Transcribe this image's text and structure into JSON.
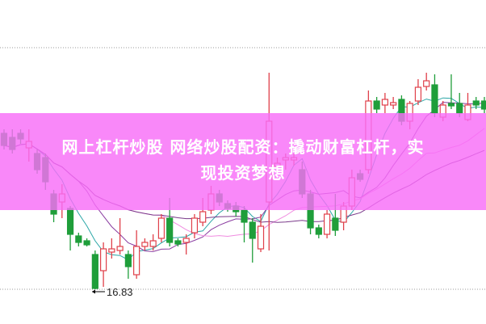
{
  "chart_data": {
    "type": "candlestick",
    "title": "",
    "colors": {
      "up": "#e0404a",
      "down": "#1f9e3a",
      "grid": "#999999",
      "ma": [
        "#2aa6a6",
        "#8a3ca0",
        "#f08ce0",
        "#7a3a8a"
      ]
    },
    "grid": "dotted horizontal top and bottom",
    "low_annotation": "16.83",
    "ohlc": [
      [
        18.76,
        18.81,
        18.56,
        18.61
      ],
      [
        18.71,
        18.81,
        18.51,
        18.56
      ],
      [
        18.76,
        18.81,
        18.63,
        18.69
      ],
      [
        18.58,
        18.81,
        18.41,
        18.66
      ],
      [
        18.51,
        18.56,
        18.26,
        18.31
      ],
      [
        18.46,
        18.51,
        18.06,
        18.16
      ],
      [
        18.01,
        18.06,
        17.66,
        17.76
      ],
      [
        17.91,
        18.13,
        17.71,
        18.01
      ],
      [
        17.83,
        17.86,
        17.31,
        17.51
      ],
      [
        17.49,
        17.53,
        17.36,
        17.41
      ],
      [
        17.43,
        17.46,
        17.36,
        17.38
      ],
      [
        17.26,
        17.31,
        16.83,
        16.84
      ],
      [
        17.06,
        17.41,
        16.86,
        17.33
      ],
      [
        17.29,
        17.46,
        17.21,
        17.33
      ],
      [
        17.31,
        17.71,
        17.26,
        17.36
      ],
      [
        17.26,
        17.31,
        16.96,
        17.11
      ],
      [
        17.01,
        17.56,
        16.96,
        17.36
      ],
      [
        17.36,
        17.46,
        17.31,
        17.41
      ],
      [
        17.36,
        17.51,
        17.31,
        17.43
      ],
      [
        17.46,
        17.76,
        17.41,
        17.71
      ],
      [
        17.71,
        17.96,
        17.36,
        17.41
      ],
      [
        17.43,
        17.46,
        17.36,
        17.39
      ],
      [
        17.41,
        17.51,
        17.26,
        17.46
      ],
      [
        17.53,
        17.76,
        17.46,
        17.71
      ],
      [
        17.66,
        17.96,
        17.61,
        17.79
      ],
      [
        17.81,
        18.11,
        17.76,
        18.01
      ],
      [
        18.01,
        18.06,
        17.86,
        17.91
      ],
      [
        17.89,
        17.93,
        17.79,
        17.83
      ],
      [
        17.86,
        17.91,
        17.73,
        17.79
      ],
      [
        17.81,
        17.86,
        17.41,
        17.66
      ],
      [
        17.66,
        17.71,
        17.16,
        17.46
      ],
      [
        17.33,
        17.76,
        17.29,
        17.61
      ],
      [
        17.91,
        19.51,
        17.31,
        18.91
      ],
      [
        18.35,
        18.46,
        18.26,
        18.39
      ],
      [
        18.43,
        18.51,
        18.31,
        18.46
      ],
      [
        18.43,
        18.51,
        18.36,
        18.46
      ],
      [
        18.31,
        18.41,
        17.96,
        18.01
      ],
      [
        18.01,
        18.06,
        17.51,
        17.59
      ],
      [
        17.59,
        17.63,
        17.46,
        17.51
      ],
      [
        17.51,
        17.81,
        17.46,
        17.76
      ],
      [
        17.71,
        18.01,
        17.49,
        17.56
      ],
      [
        17.66,
        17.91,
        17.56,
        17.86
      ],
      [
        17.86,
        18.31,
        17.81,
        18.21
      ],
      [
        18.26,
        18.31,
        18.16,
        18.19
      ],
      [
        18.31,
        19.29,
        18.26,
        19.16
      ],
      [
        19.16,
        19.21,
        19.01,
        19.06
      ],
      [
        19.11,
        19.26,
        19.01,
        19.18
      ],
      [
        19.11,
        19.21,
        19.06,
        19.14
      ],
      [
        19.18,
        19.23,
        18.86,
        18.91
      ],
      [
        18.91,
        19.16,
        18.81,
        19.13
      ],
      [
        19.16,
        19.43,
        19.11,
        19.33
      ],
      [
        19.34,
        19.51,
        19.29,
        19.41
      ],
      [
        19.36,
        19.49,
        18.96,
        19.01
      ],
      [
        18.96,
        19.16,
        18.91,
        19.11
      ],
      [
        19.13,
        19.49,
        19.06,
        19.1
      ],
      [
        19.13,
        19.26,
        18.96,
        19.01
      ],
      [
        18.93,
        19.26,
        18.91,
        19.11
      ],
      [
        19.16,
        19.21,
        19.06,
        19.11
      ],
      [
        19.16,
        19.21,
        19.01,
        19.06
      ]
    ]
  },
  "banner": {
    "line1": "网上杠杆炒股 网络炒股配资：撬动财富杠杆，实",
    "line2": "现投资梦想"
  }
}
